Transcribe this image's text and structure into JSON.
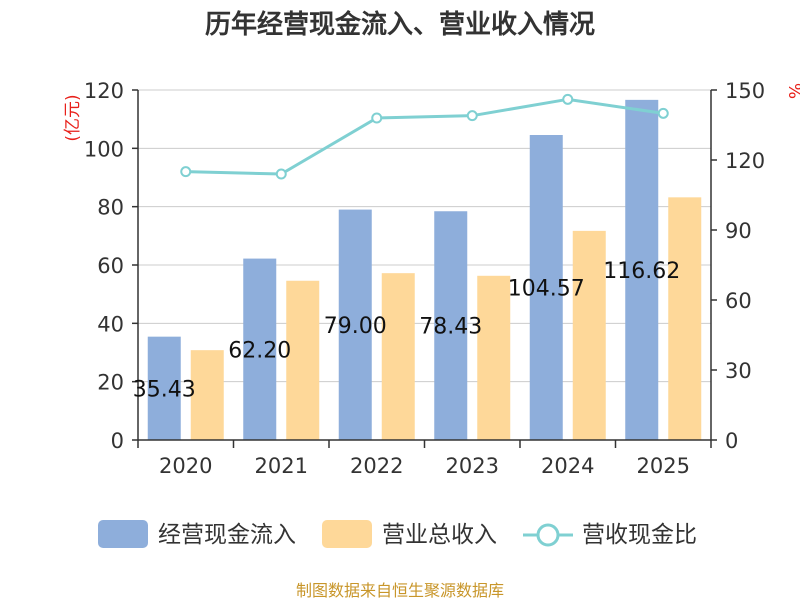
{
  "chart_data": {
    "type": "bar+line",
    "title": "历年经营现金流入、营业收入情况",
    "categories": [
      "2020",
      "2021",
      "2022",
      "2023",
      "2024",
      "2025"
    ],
    "series": [
      {
        "name": "经营现金流入",
        "axis": "left",
        "type": "bar",
        "color": "#8eaedb",
        "values": [
          35.43,
          62.2,
          79.0,
          78.43,
          104.57,
          116.62
        ]
      },
      {
        "name": "营业总收入",
        "axis": "left",
        "type": "bar",
        "color": "#fed899",
        "values": [
          30.8,
          54.6,
          57.2,
          56.3,
          71.7,
          83.2
        ]
      },
      {
        "name": "营收现金比",
        "axis": "right",
        "type": "line",
        "color": "#7fd0d2",
        "values": [
          115,
          114,
          138,
          139,
          146,
          140
        ]
      }
    ],
    "data_labels": [
      "35.43",
      "62.20",
      "79.00",
      "78.43",
      "104.57",
      "116.62"
    ],
    "left_axis": {
      "unit": "(亿元)",
      "ticks": [
        0,
        20,
        40,
        60,
        80,
        100,
        120
      ],
      "ylim": [
        0,
        120
      ]
    },
    "right_axis": {
      "unit": "%",
      "ticks": [
        0,
        30,
        60,
        90,
        120,
        150
      ],
      "ylim": [
        0,
        150
      ]
    },
    "legend": {
      "position": "bottom"
    },
    "source": "制图数据来自恒生聚源数据库"
  }
}
